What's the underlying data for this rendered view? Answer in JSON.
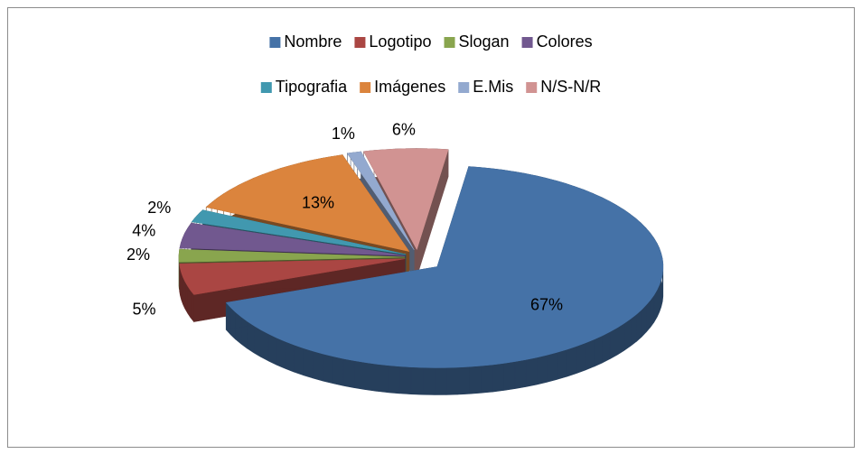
{
  "chart_data": {
    "type": "pie",
    "categories": [
      "Nombre",
      "Logotipo",
      "Slogan",
      "Colores",
      "Tipografia",
      "Imágenes",
      "E.Mis",
      "N/S-N/R"
    ],
    "values": [
      67,
      5,
      2,
      4,
      2,
      13,
      1,
      6
    ],
    "value_labels": [
      "67%",
      "5%",
      "2%",
      "4%",
      "2%",
      "13%",
      "1%",
      "6%"
    ],
    "colors": [
      "#4572a7",
      "#aa4643",
      "#89a54e",
      "#71588f",
      "#4198af",
      "#db843d",
      "#93a9cf",
      "#d19392"
    ],
    "legend": "top"
  }
}
